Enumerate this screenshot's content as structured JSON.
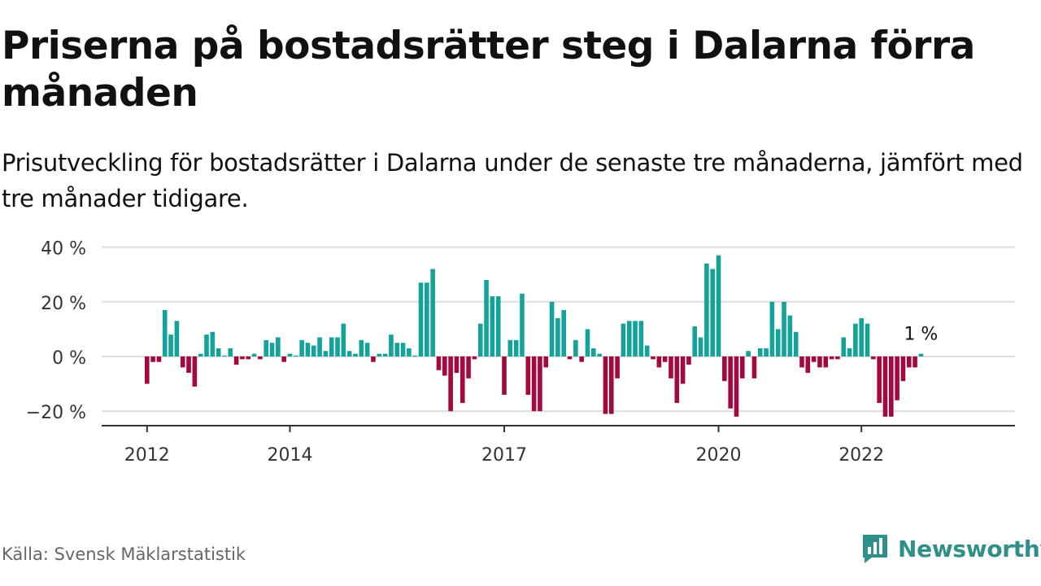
{
  "title": "Priserna på bostadsrätter steg i Dalarna förra månaden",
  "subtitle": "Prisutveckling för bostadsrätter i Dalarna under de senaste tre månaderna, jämfört med tre månader tidigare.",
  "source": "Källa: Svensk Mäklarstatistik",
  "brand": "Newsworthy",
  "colors": {
    "positive": "#13a39b",
    "negative": "#a3093f",
    "grid": "#dddddd",
    "axis": "#333333",
    "brand": "#2f8f89"
  },
  "chart_data": {
    "type": "bar",
    "x_start": "2012-01",
    "x_end": "2022-12",
    "values": [
      -10,
      -2,
      -2,
      17,
      8,
      13,
      -4,
      -6,
      -11,
      1,
      8,
      9,
      3,
      0,
      3,
      -3,
      -1,
      -1,
      1,
      -1,
      6,
      5,
      7,
      -2,
      1,
      0,
      6,
      5,
      4,
      7,
      2,
      7,
      7,
      12,
      2,
      1,
      6,
      5,
      -2,
      1,
      1,
      8,
      5,
      5,
      3,
      0,
      27,
      27,
      32,
      -5,
      -7,
      -20,
      -6,
      -17,
      -8,
      -1,
      12,
      28,
      22,
      22,
      -14,
      6,
      6,
      23,
      -14,
      -20,
      -20,
      -4,
      20,
      14,
      17,
      -1,
      6,
      -2,
      10,
      3,
      1,
      -21,
      -21,
      -8,
      12,
      13,
      13,
      13,
      4,
      -1,
      -4,
      -2,
      -8,
      -17,
      -10,
      -3,
      11,
      7,
      34,
      32,
      37,
      -9,
      -19,
      -22,
      -8,
      2,
      -8,
      3,
      3,
      20,
      10,
      20,
      15,
      9,
      -4,
      -6,
      -2,
      -4,
      -4,
      -1,
      -1,
      7,
      3,
      12,
      14,
      12,
      -1,
      -17,
      -22,
      -22,
      -16,
      -9,
      -4,
      -4,
      1
    ],
    "x_ticks": [
      "2012",
      "2014",
      "2017",
      "2020",
      "2022"
    ],
    "y_ticks": [
      "40 %",
      "20 %",
      "0 %",
      "−20 %"
    ],
    "ylim": [
      -25,
      40
    ],
    "annotation": "1 %",
    "grid": true,
    "xlabel": "",
    "ylabel": ""
  }
}
